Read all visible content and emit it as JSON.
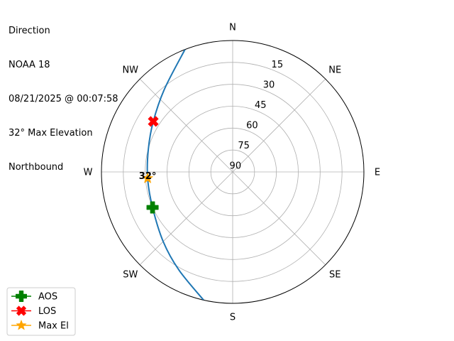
{
  "chart_data": {
    "type": "polar",
    "title_lines": [
      "Direction",
      "NOAA 18",
      "08/21/2025 @ 00:07:58",
      "32° Max Elevation",
      "Northbound"
    ],
    "theta_direction": "clockwise",
    "theta_zero": "N",
    "compass_labels": [
      {
        "label": "N",
        "az": 0
      },
      {
        "label": "NE",
        "az": 45
      },
      {
        "label": "E",
        "az": 90
      },
      {
        "label": "SE",
        "az": 135
      },
      {
        "label": "S",
        "az": 180
      },
      {
        "label": "SW",
        "az": 225
      },
      {
        "label": "W",
        "az": 270
      },
      {
        "label": "NW",
        "az": 315
      }
    ],
    "radial_axis": {
      "quantity": "elevation",
      "range": [
        90,
        0
      ],
      "tick_labels": [
        "15",
        "30",
        "45",
        "60",
        "75",
        "90"
      ],
      "ticks": [
        15,
        30,
        45,
        60,
        75,
        90
      ],
      "label_az": 22.5
    },
    "grid": true,
    "series": [
      {
        "kind": "track",
        "color": "#1f77b4",
        "points": [
          {
            "az": 338.7,
            "el": 0
          },
          {
            "az": 320.6,
            "el": 16.4
          },
          {
            "az": 302.4,
            "el": 25.5
          },
          {
            "az": 285.1,
            "el": 30.1
          },
          {
            "az": 265.7,
            "el": 31.5
          },
          {
            "az": 246.1,
            "el": 29.9
          },
          {
            "az": 225.0,
            "el": 22.6
          },
          {
            "az": 208.8,
            "el": 13.4
          },
          {
            "az": 192.8,
            "el": 0
          }
        ]
      },
      {
        "kind": "marker",
        "name": "AOS",
        "marker": "plus-filled",
        "color": "#008000",
        "az": 246.1,
        "el": 29.9
      },
      {
        "kind": "marker",
        "name": "LOS",
        "marker": "x-filled",
        "color": "#ff0000",
        "az": 302.4,
        "el": 25.5
      },
      {
        "kind": "marker",
        "name": "Max El",
        "marker": "star",
        "color": "#ffa500",
        "az": 265.7,
        "el": 31.5
      }
    ],
    "annotations": [
      {
        "text": "32°",
        "az": 265.7,
        "el": 31.5
      }
    ],
    "legend": {
      "placement": "bottom-left",
      "entries": [
        "AOS",
        "LOS",
        "Max El"
      ]
    }
  }
}
